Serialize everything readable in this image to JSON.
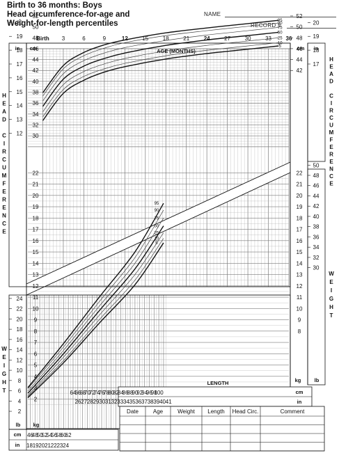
{
  "header": {
    "title_lines": [
      "Birth to 36 months: Boys",
      "Head circumference-for-age and",
      "Weight-for-length percentiles"
    ],
    "name_label": "NAME",
    "record_label": "RECORD #"
  },
  "chart_data": [
    {
      "type": "line",
      "title": "Head circumference-for-age",
      "xlabel": "AGE (MONTHS)",
      "ylabel": "HEAD CIRCUMFERENCE",
      "x_tick_labels": [
        "Birth",
        "3",
        "6",
        "9",
        "12",
        "15",
        "18",
        "21",
        "24",
        "27",
        "30",
        "33",
        "36"
      ],
      "x_tick_values": [
        0,
        3,
        6,
        9,
        12,
        15,
        18,
        21,
        24,
        27,
        30,
        33,
        36
      ],
      "x_bold_labels": [
        "Birth",
        "12",
        "24",
        "36"
      ],
      "x": [
        0,
        3,
        6,
        9,
        12,
        18,
        24,
        30,
        34.5
      ],
      "xlim": [
        0,
        36
      ],
      "ylim_cm": [
        28,
        53.6
      ],
      "y_unit_left_outer": "in",
      "y_unit_left_inner": "cm",
      "y_unit_right_inner": "cm",
      "y_unit_right_outer": "in",
      "y_ticks_cm": [
        30,
        32,
        34,
        36,
        38,
        40,
        42,
        44,
        46,
        48,
        50,
        52
      ],
      "y_ticks_in": [
        12,
        13,
        14,
        15,
        16,
        17,
        18,
        19,
        20
      ],
      "y_ticks_cm_right": [
        42,
        44,
        46,
        48,
        50,
        52
      ],
      "y_ticks_in_right": [
        17,
        18,
        19,
        20
      ],
      "series": [
        {
          "name": "95",
          "values": [
            37.9,
            42.9,
            45.3,
            46.7,
            47.6,
            48.9,
            49.8,
            50.6,
            51.2
          ]
        },
        {
          "name": "90",
          "values": [
            37.3,
            42.3,
            44.7,
            46.1,
            47.1,
            48.4,
            49.3,
            50.1,
            50.7
          ]
        },
        {
          "name": "75",
          "values": [
            36.4,
            41.4,
            43.8,
            45.2,
            46.2,
            47.5,
            48.5,
            49.3,
            49.9
          ]
        },
        {
          "name": "50",
          "values": [
            35.4,
            40.4,
            42.8,
            44.2,
            45.2,
            46.6,
            47.6,
            48.4,
            49.0
          ]
        },
        {
          "name": "25",
          "values": [
            34.4,
            39.4,
            41.8,
            43.2,
            44.2,
            45.6,
            46.6,
            47.4,
            48.0
          ]
        },
        {
          "name": "10",
          "values": [
            33.5,
            38.5,
            40.9,
            42.3,
            43.3,
            44.7,
            45.7,
            46.5,
            47.1
          ]
        },
        {
          "name": "5",
          "values": [
            32.8,
            37.8,
            40.2,
            41.7,
            42.7,
            44.1,
            45.1,
            45.9,
            46.5
          ]
        }
      ]
    },
    {
      "type": "line",
      "title": "Weight-for-length",
      "xlabel": "LENGTH",
      "ylabel": "WEIGHT",
      "x": [
        45,
        60,
        75,
        90,
        102
      ],
      "xlim_cm": [
        45,
        103
      ],
      "x_ticks_cm": [
        46,
        48,
        50,
        52,
        54,
        56,
        58,
        60,
        62,
        64,
        66,
        68,
        70,
        72,
        74,
        76,
        78,
        80,
        82,
        84,
        86,
        88,
        90,
        92,
        94,
        96,
        98,
        100
      ],
      "x_ticks_cm_left": [
        46,
        48,
        50,
        52,
        54,
        56,
        58,
        60,
        62
      ],
      "x_ticks_in_left": [
        18,
        19,
        20,
        21,
        22,
        23,
        24
      ],
      "x_ticks_cm_upper": [
        64,
        66,
        68,
        70,
        72,
        74,
        76,
        78,
        80,
        82,
        84,
        86,
        88,
        90,
        92,
        94,
        96,
        98,
        100
      ],
      "x_ticks_in_upper": [
        26,
        27,
        28,
        29,
        30,
        31,
        32,
        33,
        34,
        35,
        36,
        37,
        38,
        39,
        40,
        41
      ],
      "x_unit_cm": "cm",
      "x_unit_in": "in",
      "ylim_kg": [
        1.5,
        22.3
      ],
      "y_unit_kg": "kg",
      "y_unit_lb": "lb",
      "y_ticks_kg": [
        2,
        3,
        4,
        5,
        6,
        7,
        8,
        9,
        10,
        11,
        12,
        13,
        14,
        15,
        16,
        17,
        18,
        19,
        20,
        21,
        22
      ],
      "y_ticks_lb": [
        2,
        4,
        6,
        8,
        10,
        12,
        14,
        16,
        18,
        20,
        22,
        24
      ],
      "y_ticks_lb_right": [
        30,
        32,
        34,
        36,
        38,
        40,
        42,
        44,
        46,
        48,
        50
      ],
      "series": [
        {
          "name": "95",
          "values": [
            3.0,
            6.9,
            11.0,
            15.0,
            19.3
          ]
        },
        {
          "name": "90",
          "values": [
            2.9,
            6.6,
            10.6,
            14.5,
            18.7
          ]
        },
        {
          "name": "75",
          "values": [
            2.7,
            6.3,
            10.2,
            14.0,
            18.0
          ]
        },
        {
          "name": "50",
          "values": [
            2.5,
            6.0,
            9.8,
            13.5,
            17.3
          ]
        },
        {
          "name": "25",
          "values": [
            2.3,
            5.7,
            9.4,
            13.0,
            16.7
          ]
        },
        {
          "name": "10",
          "values": [
            2.2,
            5.4,
            9.0,
            12.5,
            16.2
          ]
        },
        {
          "name": "5",
          "values": [
            2.1,
            5.2,
            8.7,
            12.1,
            15.8
          ]
        }
      ]
    }
  ],
  "table": {
    "headers": [
      "Date",
      "Age",
      "Weight",
      "Length",
      "Head  Circ.",
      "Comment"
    ],
    "rows": 4
  },
  "colors": {
    "major_line": "#111111",
    "minor_line": "#444444",
    "grid": "#b0b0b0",
    "grid_major": "#7a7a7a"
  }
}
